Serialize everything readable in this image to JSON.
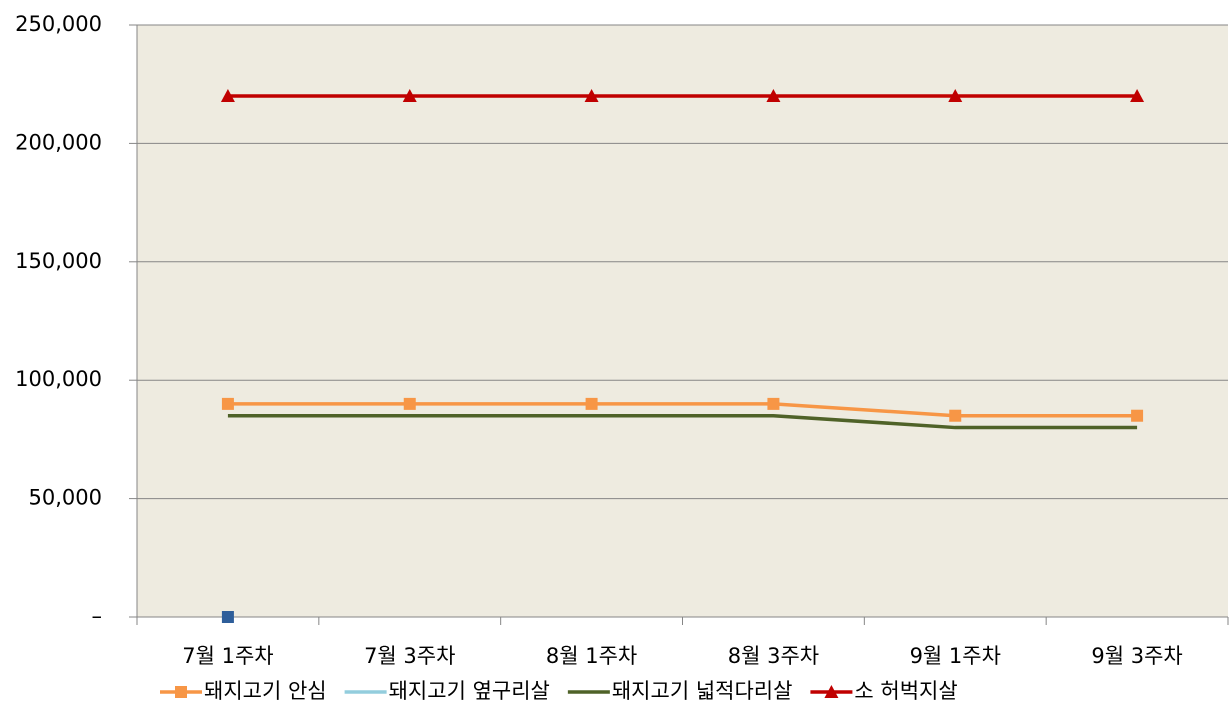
{
  "chart_data": {
    "type": "line",
    "categories": [
      "7월 1주차",
      "7월 3주차",
      "8월 1주차",
      "8월 3주차",
      "9월 1주차",
      "9월 3주차"
    ],
    "series": [
      {
        "name": "돼지고기 안심",
        "color": "#f79646",
        "marker": "square",
        "values": [
          90000,
          90000,
          90000,
          90000,
          85000,
          85000
        ]
      },
      {
        "name": "돼지고기 옆구리살",
        "color": "#93cddd",
        "marker": "square",
        "marker_color": "#2e5e9a",
        "values": [
          0,
          null,
          null,
          null,
          null,
          null
        ]
      },
      {
        "name": "돼지고기 넓적다리살",
        "color": "#4f6228",
        "values": [
          85000,
          85000,
          85000,
          85000,
          80000,
          80000
        ]
      },
      {
        "name": "소 허벅지살",
        "color": "#c00000",
        "marker": "triangle",
        "values": [
          220000,
          220000,
          220000,
          220000,
          220000,
          220000
        ]
      }
    ],
    "ylim": [
      0,
      250000
    ],
    "yticks": [
      {
        "value": 0,
        "label": "–"
      },
      {
        "value": 50000,
        "label": "50,000"
      },
      {
        "value": 100000,
        "label": "100,000"
      },
      {
        "value": 150000,
        "label": "150,000"
      },
      {
        "value": 200000,
        "label": "200,000"
      },
      {
        "value": 250000,
        "label": "250,000"
      }
    ],
    "grid": true,
    "legend": "bottom",
    "plot_background": "#eeebe0"
  }
}
